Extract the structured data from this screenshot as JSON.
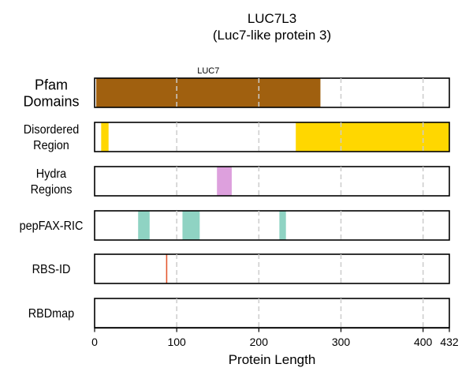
{
  "chart_data": {
    "type": "bar",
    "title": "LUC7L3",
    "subtitle": "(Luc7-like protein 3)",
    "xlabel": "Protein Length",
    "xlim": [
      0,
      432
    ],
    "xticks": [
      0,
      100,
      200,
      300,
      400,
      432
    ],
    "xtick_labels": [
      "0",
      "100",
      "200",
      "300",
      "400",
      "432"
    ],
    "grid_x": [
      100,
      200,
      300,
      400
    ],
    "tracks": [
      {
        "id": "pfam",
        "label_lines": [
          "Pfam",
          "Domains"
        ],
        "segments": [
          {
            "start": 2,
            "end": 275,
            "color": "#a0600f",
            "label": "LUC7"
          }
        ]
      },
      {
        "id": "disordered",
        "label_lines": [
          "Disordered",
          "Region"
        ],
        "segments": [
          {
            "start": 8,
            "end": 17,
            "color": "#ffd700"
          },
          {
            "start": 245,
            "end": 432,
            "color": "#ffd700"
          }
        ]
      },
      {
        "id": "hydra",
        "label_lines": [
          "Hydra",
          "Regions"
        ],
        "segments": [
          {
            "start": 149,
            "end": 167,
            "color": "#dda0dd"
          }
        ]
      },
      {
        "id": "pepfax",
        "label_lines": [
          "pepFAX-RIC"
        ],
        "segments": [
          {
            "start": 53,
            "end": 67,
            "color": "#8fd3c3"
          },
          {
            "start": 107,
            "end": 128,
            "color": "#8fd3c3"
          },
          {
            "start": 225,
            "end": 233,
            "color": "#8fd3c3"
          }
        ]
      },
      {
        "id": "rbsid",
        "label_lines": [
          "RBS-ID"
        ],
        "segments": [
          {
            "start": 87,
            "end": 88.5,
            "color": "#e4572e"
          }
        ]
      },
      {
        "id": "rbdmap",
        "label_lines": [
          "RBDmap"
        ],
        "segments": []
      }
    ]
  }
}
